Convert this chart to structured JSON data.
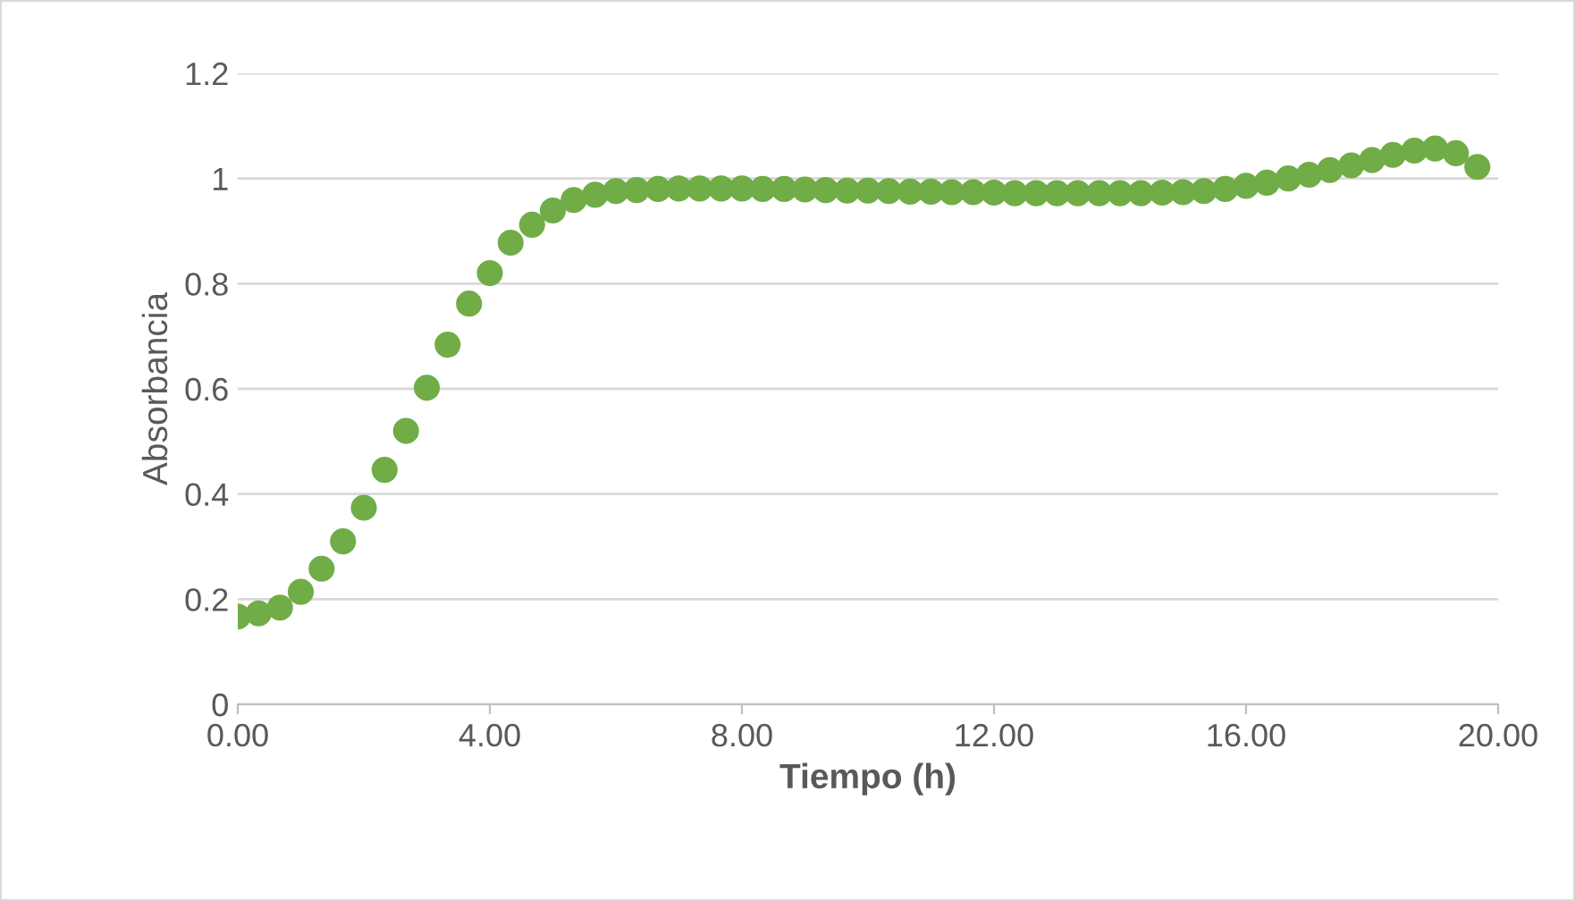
{
  "chart_data": {
    "type": "scatter",
    "xlabel": "Tiempo (h)",
    "ylabel": "Absorbancia",
    "x": [
      0,
      0.33,
      0.67,
      1,
      1.33,
      1.67,
      2,
      2.33,
      2.67,
      3,
      3.33,
      3.67,
      4,
      4.33,
      4.67,
      5,
      5.33,
      5.67,
      6,
      6.33,
      6.67,
      7,
      7.33,
      7.67,
      8,
      8.33,
      8.67,
      9,
      9.33,
      9.67,
      10,
      10.33,
      10.67,
      11,
      11.33,
      11.67,
      12,
      12.33,
      12.67,
      13,
      13.33,
      13.67,
      14,
      14.33,
      14.67,
      15,
      15.33,
      15.67,
      16,
      16.33,
      16.67,
      17,
      17.33,
      17.67,
      18,
      18.33,
      18.67,
      19,
      19.33,
      19.67
    ],
    "series": [
      {
        "color": "#70ad47",
        "values": [
          0.167,
          0.173,
          0.184,
          0.214,
          0.258,
          0.31,
          0.374,
          0.446,
          0.52,
          0.602,
          0.684,
          0.762,
          0.82,
          0.878,
          0.912,
          0.939,
          0.959,
          0.969,
          0.976,
          0.978,
          0.98,
          0.981,
          0.981,
          0.981,
          0.981,
          0.98,
          0.98,
          0.979,
          0.978,
          0.977,
          0.977,
          0.976,
          0.975,
          0.975,
          0.974,
          0.974,
          0.973,
          0.972,
          0.972,
          0.972,
          0.972,
          0.972,
          0.972,
          0.972,
          0.973,
          0.974,
          0.976,
          0.98,
          0.986,
          0.992,
          1.0,
          1.007,
          1.016,
          1.025,
          1.035,
          1.045,
          1.053,
          1.057,
          1.048,
          1.022
        ]
      }
    ],
    "xlim": [
      0,
      20
    ],
    "xticks": [
      {
        "value": 0,
        "label": "0.00"
      },
      {
        "value": 4,
        "label": "4.00"
      },
      {
        "value": 8,
        "label": "8.00"
      },
      {
        "value": 12,
        "label": "12.00"
      },
      {
        "value": 16,
        "label": "16.00"
      },
      {
        "value": 20,
        "label": "20.00"
      }
    ],
    "ylim": [
      0,
      1.2
    ],
    "yticks": [
      0,
      0.2,
      0.4,
      0.6,
      0.8,
      1,
      1.2
    ],
    "grid": "y",
    "marker": "circle",
    "legend": false
  }
}
